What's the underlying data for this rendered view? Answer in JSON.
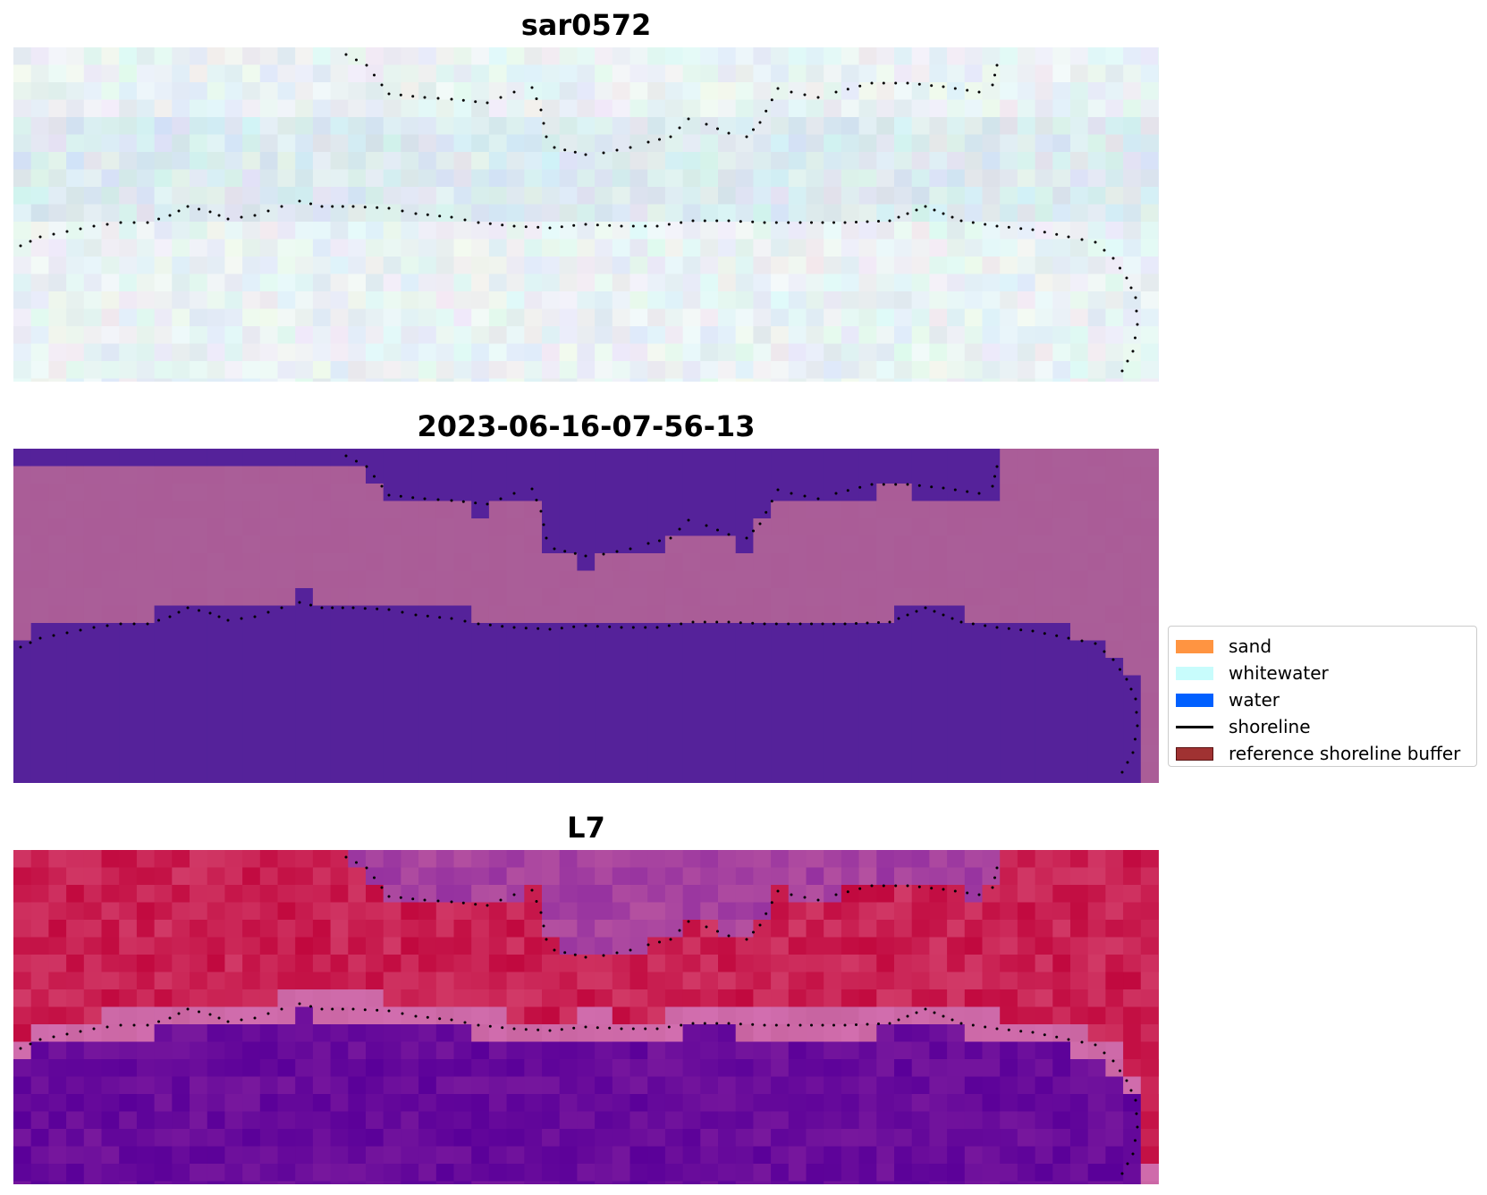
{
  "panels": [
    {
      "title": "sar0572",
      "style": "rgb"
    },
    {
      "title": "2023-06-16-07-56-13",
      "style": "classified"
    },
    {
      "title": "L7",
      "style": "index"
    }
  ],
  "legend": {
    "items": [
      {
        "label": "sand",
        "kind": "patch",
        "color": "#ff9441"
      },
      {
        "label": "whitewater",
        "kind": "patch",
        "color": "#c8fcfc"
      },
      {
        "label": "water",
        "kind": "patch",
        "color": "#0060ff"
      },
      {
        "label": "shoreline",
        "kind": "line",
        "color": "#000000"
      },
      {
        "label": "reference shoreline buffer",
        "kind": "patch",
        "color": "#a03232",
        "edge": "#5a1414"
      }
    ]
  },
  "colors": {
    "classified_water": "#55229a",
    "classified_land": "#aa5e98",
    "index_high": "#c1083e",
    "index_low": "#5a0099",
    "shoreline_points": "#000000"
  }
}
